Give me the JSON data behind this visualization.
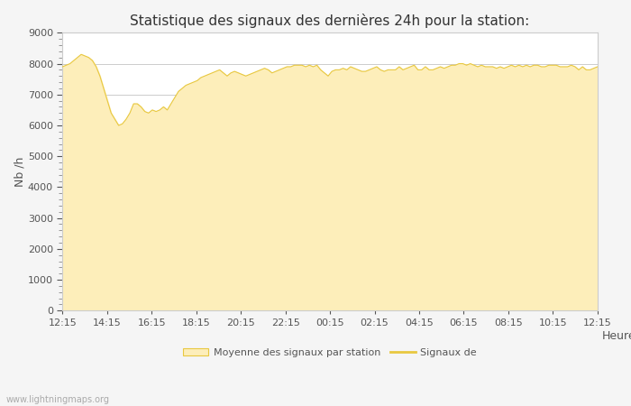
{
  "title": "Statistique des signaux des dernières 24h pour la station:",
  "xlabel": "Heure",
  "ylabel": "Nb /h",
  "ylim": [
    0,
    9000
  ],
  "yticks": [
    0,
    1000,
    2000,
    3000,
    4000,
    5000,
    6000,
    7000,
    8000,
    9000
  ],
  "x_labels": [
    "12:15",
    "14:15",
    "16:15",
    "18:15",
    "20:15",
    "22:15",
    "00:15",
    "02:15",
    "04:15",
    "06:15",
    "08:15",
    "10:15",
    "12:15"
  ],
  "fill_color": "#FDEEBA",
  "line_color": "#E8C840",
  "background_color": "#f5f5f5",
  "plot_bg_color": "#ffffff",
  "grid_color": "#cccccc",
  "watermark": "www.lightningmaps.org",
  "legend_fill_label": "Moyenne des signaux par station",
  "legend_line_label": "Signaux de",
  "y_values": [
    7900,
    7950,
    8000,
    8100,
    8200,
    8300,
    8250,
    8200,
    8100,
    7900,
    7600,
    7200,
    6800,
    6400,
    6200,
    6000,
    6050,
    6200,
    6400,
    6700,
    6700,
    6600,
    6450,
    6400,
    6500,
    6450,
    6500,
    6600,
    6500,
    6700,
    6900,
    7100,
    7200,
    7300,
    7350,
    7400,
    7450,
    7550,
    7600,
    7650,
    7700,
    7750,
    7800,
    7700,
    7600,
    7700,
    7750,
    7700,
    7650,
    7600,
    7650,
    7700,
    7750,
    7800,
    7850,
    7800,
    7700,
    7750,
    7800,
    7850,
    7900,
    7900,
    7950,
    7950,
    7950,
    7900,
    7950,
    7900,
    7950,
    7800,
    7700,
    7600,
    7750,
    7800,
    7800,
    7850,
    7800,
    7900,
    7850,
    7800,
    7750,
    7750,
    7800,
    7850,
    7900,
    7800,
    7750,
    7800,
    7800,
    7800,
    7900,
    7800,
    7850,
    7900,
    7950,
    7800,
    7800,
    7900,
    7800,
    7800,
    7850,
    7900,
    7850,
    7900,
    7950,
    7950,
    8000,
    8000,
    7950,
    8000,
    7950,
    7900,
    7950,
    7900,
    7900,
    7900,
    7850,
    7900,
    7850,
    7900,
    7950,
    7900,
    7950,
    7900,
    7950,
    7900,
    7950,
    7950,
    7900,
    7900,
    7950,
    7950,
    7950,
    7900,
    7900,
    7900,
    7950,
    7900,
    7800,
    7900,
    7800,
    7800,
    7850,
    7900
  ]
}
